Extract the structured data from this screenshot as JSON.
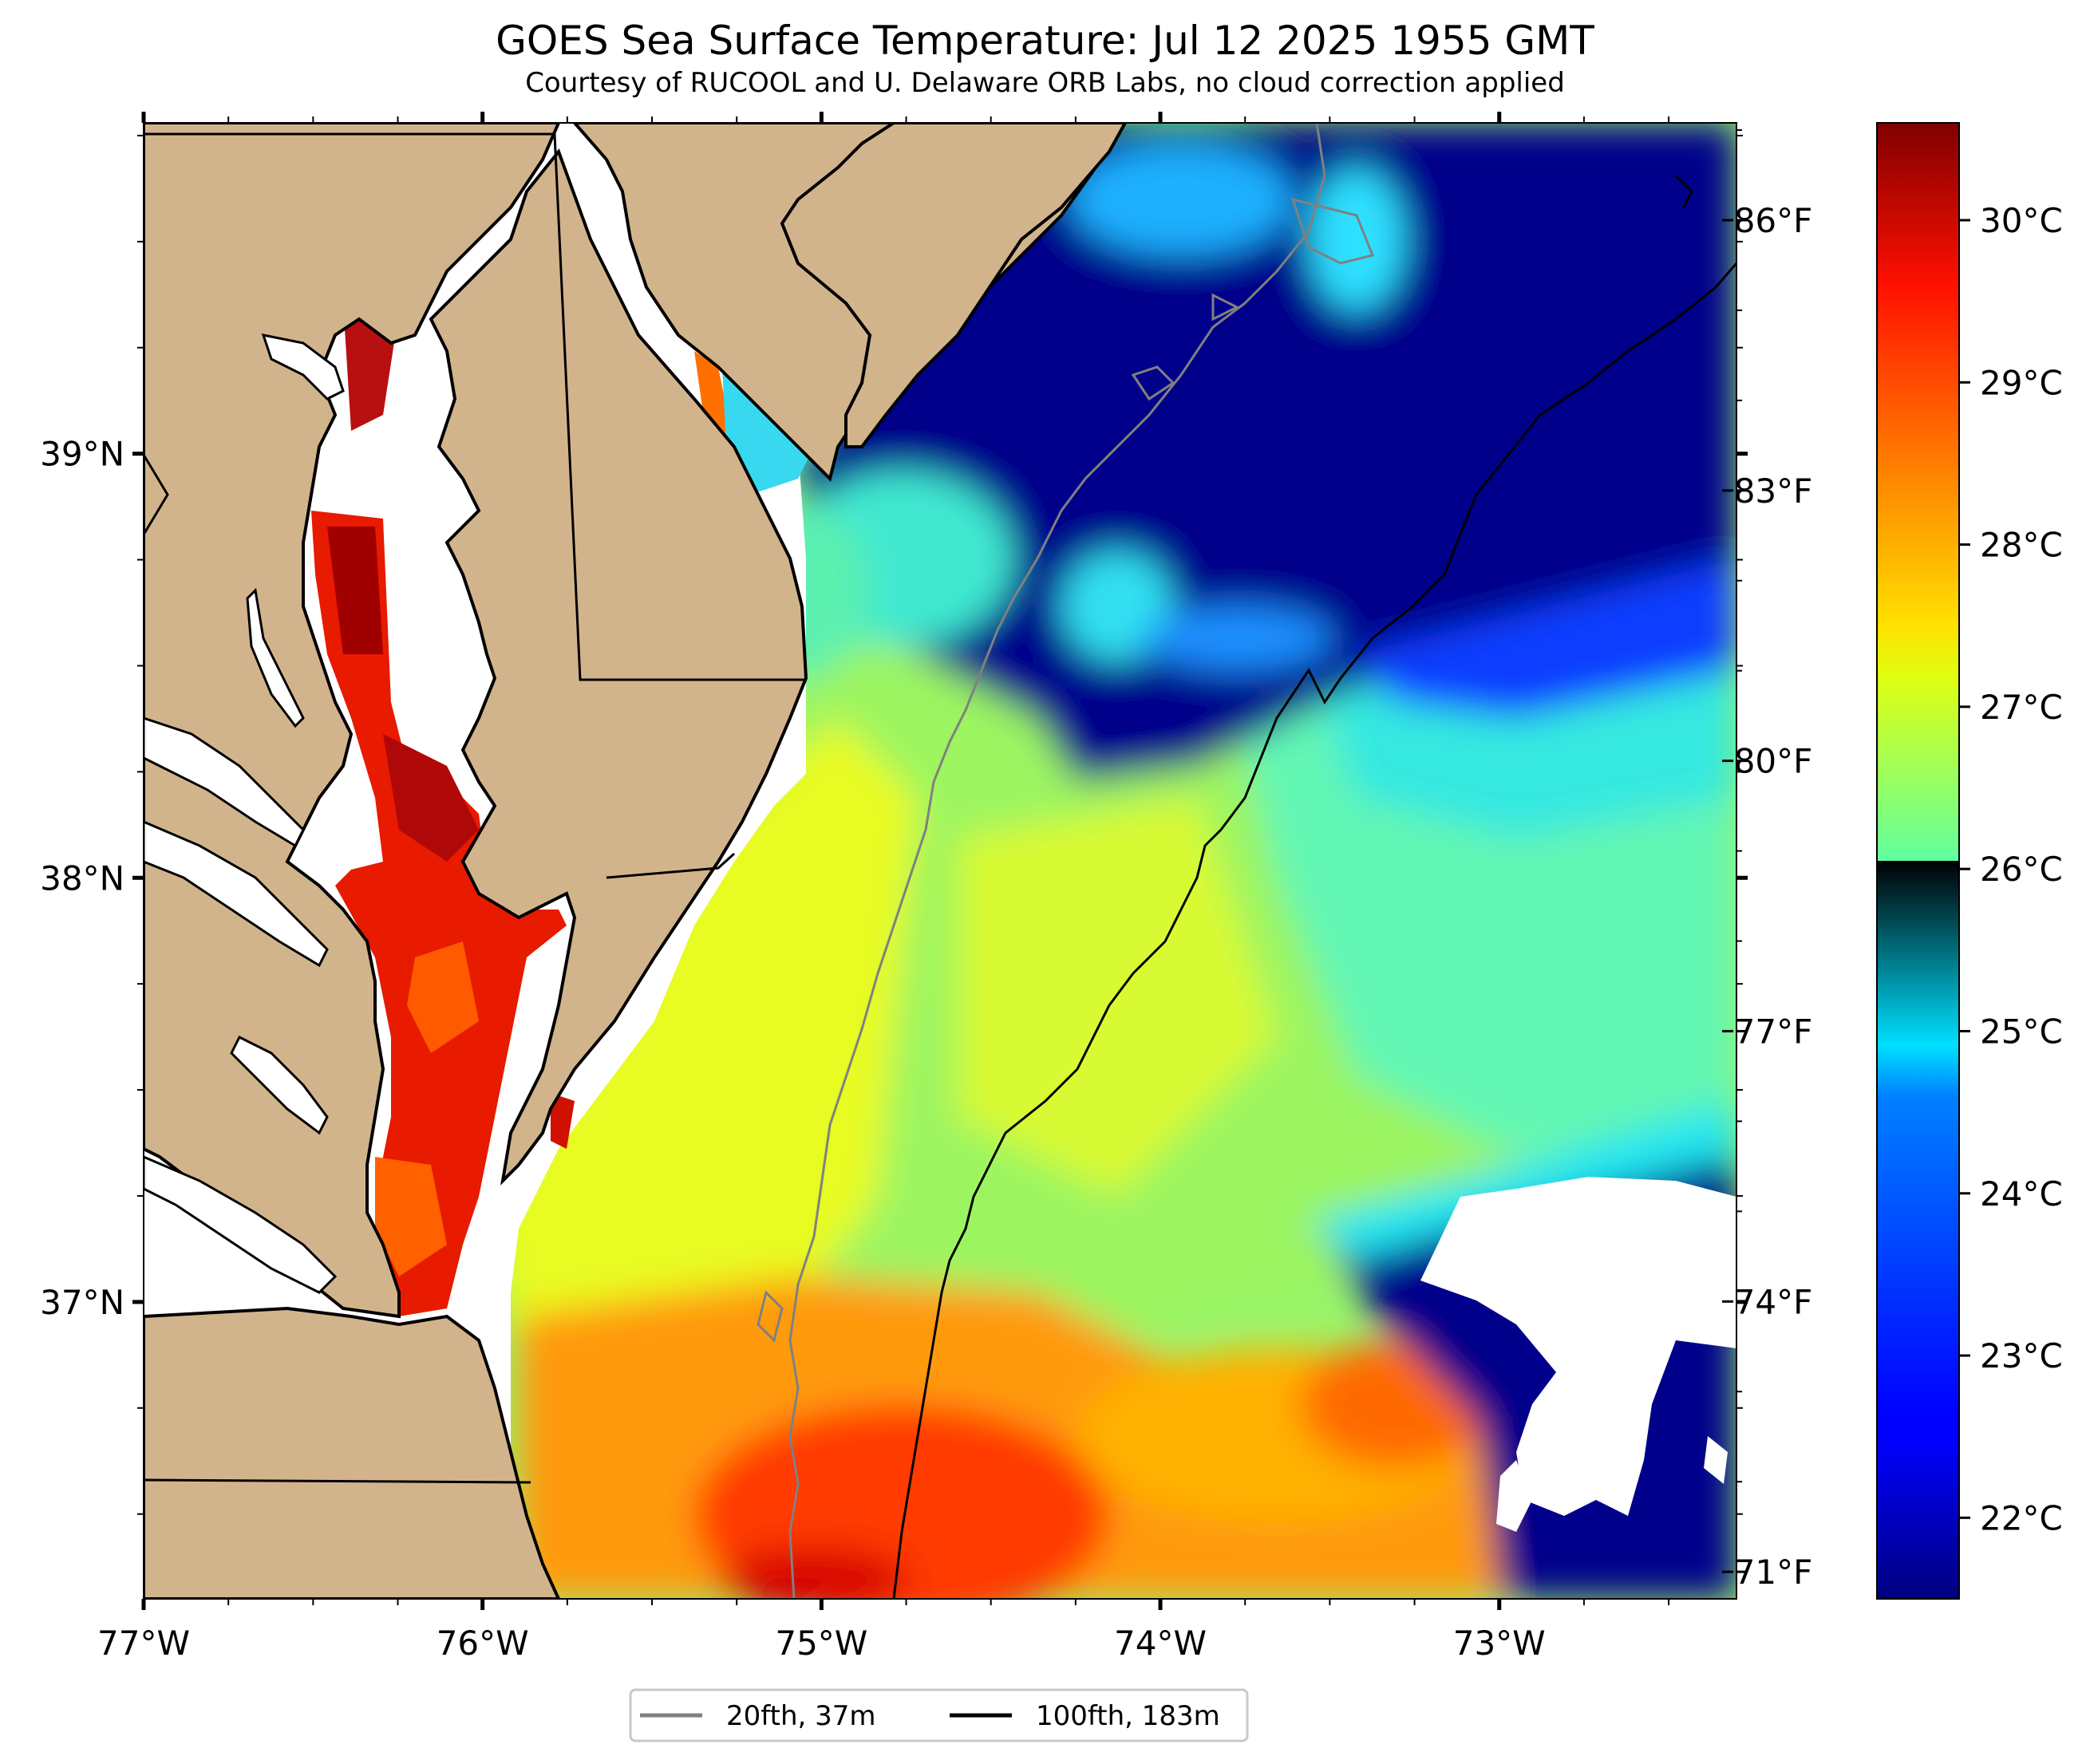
{
  "header": {
    "title": "GOES Sea Surface Temperature: Jul 12 2025 1955 GMT",
    "subtitle": "Courtesy of RUCOOL and U. Delaware ORB Labs, no cloud correction applied"
  },
  "map": {
    "extent": {
      "lon_min": -77.0,
      "lon_max": -72.3,
      "lat_min": 36.3,
      "lat_max": 39.78
    },
    "colors": {
      "land": "#d2b48c",
      "no_data": "#ffffff",
      "boundary": "#000000"
    },
    "lon_ticks": [
      {
        "value": -77,
        "label": "77°W"
      },
      {
        "value": -76,
        "label": "76°W"
      },
      {
        "value": -75,
        "label": "75°W"
      },
      {
        "value": -74,
        "label": "74°W"
      },
      {
        "value": -73,
        "label": "73°W"
      }
    ],
    "lat_ticks": [
      {
        "value": 39,
        "label": "39°N"
      },
      {
        "value": 38,
        "label": "38°N"
      },
      {
        "value": 37,
        "label": "37°N"
      }
    ]
  },
  "legend": {
    "items": [
      {
        "label": "20fth, 37m",
        "color": "#808080"
      },
      {
        "label": "100fth, 183m",
        "color": "#000000"
      }
    ]
  },
  "colorbar": {
    "colormap": "jet",
    "range_c": [
      21.5,
      30.6
    ],
    "celsius_ticks": [
      {
        "value": 22,
        "label": "22°C"
      },
      {
        "value": 23,
        "label": "23°C"
      },
      {
        "value": 24,
        "label": "24°C"
      },
      {
        "value": 25,
        "label": "25°C"
      },
      {
        "value": 26,
        "label": "26°C"
      },
      {
        "value": 27,
        "label": "27°C"
      },
      {
        "value": 28,
        "label": "28°C"
      },
      {
        "value": 29,
        "label": "29°C"
      },
      {
        "value": 30,
        "label": "30°C"
      }
    ],
    "fahrenheit_ticks": [
      {
        "value": 71,
        "label": "71°F"
      },
      {
        "value": 74,
        "label": "74°F"
      },
      {
        "value": 77,
        "label": "77°F"
      },
      {
        "value": 80,
        "label": "80°F"
      },
      {
        "value": 83,
        "label": "83°F"
      },
      {
        "value": 86,
        "label": "86°F"
      }
    ]
  }
}
